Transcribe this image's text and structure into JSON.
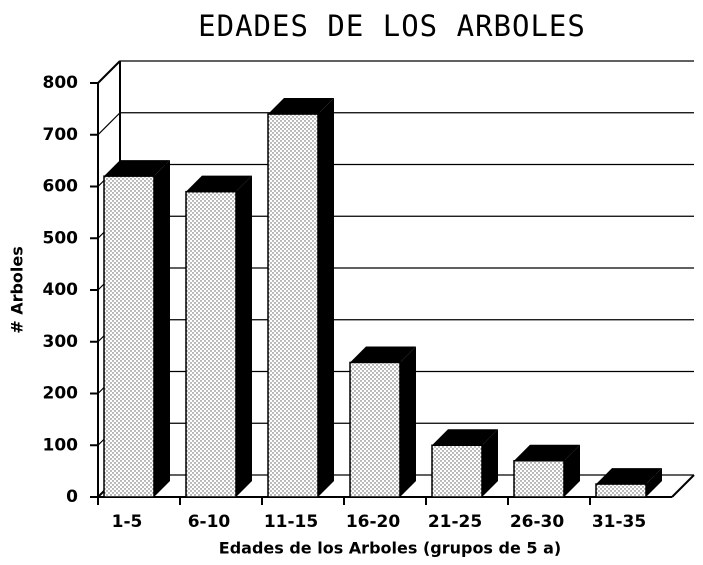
{
  "chart_data": {
    "type": "bar3d",
    "title": "EDADES DE LOS ARBOLES",
    "x_label": "Edades de los Arboles (grupos de 5 a)",
    "y_label": "# Arboles",
    "categories": [
      "1-5",
      "6-10",
      "11-15",
      "16-20",
      "21-25",
      "26-30",
      "31-35"
    ],
    "values": [
      620,
      590,
      740,
      260,
      100,
      70,
      25
    ],
    "color": "#ffffff",
    "ylim": [
      0,
      800
    ],
    "yticks": [
      0,
      100,
      200,
      300,
      400,
      500,
      600,
      700,
      800
    ],
    "grid": true
  }
}
